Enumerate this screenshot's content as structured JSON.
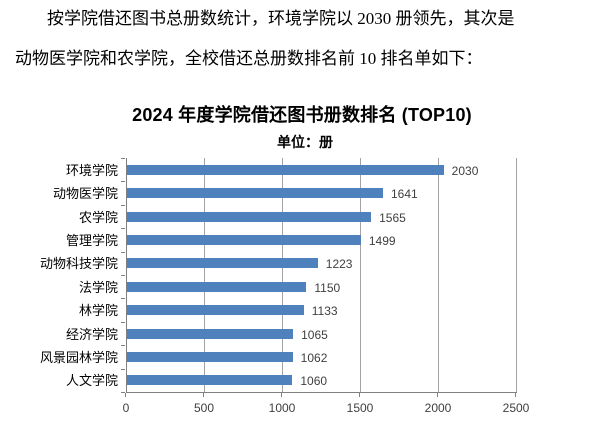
{
  "paragraph": {
    "line1": "按学院借还图书总册数统计，环境学院以 2030 册领先，其次是",
    "line2": "动物医学院和农学院，全校借还总册数排名前 10 排名单如下："
  },
  "chart_data": {
    "type": "bar",
    "orientation": "horizontal",
    "title": "2024 年度学院借还图书册数排名 (TOP10)",
    "unit_label": "单位：册",
    "categories": [
      "环境学院",
      "动物医学院",
      "农学院",
      "管理学院",
      "动物科技学院",
      "法学院",
      "林学院",
      "经济学院",
      "风景园林学院",
      "人文学院"
    ],
    "values": [
      2030,
      1641,
      1565,
      1499,
      1223,
      1150,
      1133,
      1065,
      1062,
      1060
    ],
    "xlabel": "",
    "ylabel": "",
    "xlim": [
      0,
      2500
    ],
    "x_ticks": [
      0,
      500,
      1000,
      1500,
      2000,
      2500
    ],
    "grid": true,
    "legend": "none",
    "colors": {
      "bar": "#4F81BD",
      "gridline": "#a3a3a3",
      "axis": "#808080",
      "tick_label": "#3f3f3f",
      "category_label": "#000000"
    }
  }
}
